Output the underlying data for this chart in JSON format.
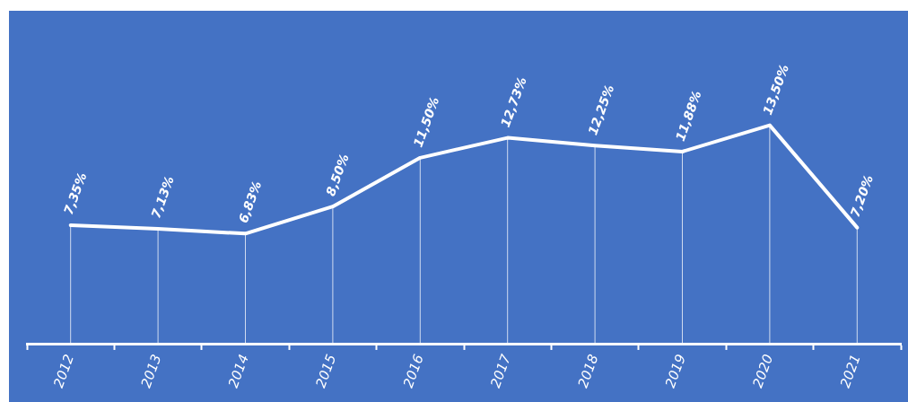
{
  "chart_data": {
    "type": "line",
    "categories": [
      "2012",
      "2013",
      "2014",
      "2015",
      "2016",
      "2017",
      "2018",
      "2019",
      "2020",
      "2021"
    ],
    "series": [
      {
        "color": "#ffffff",
        "values": [
          7.35,
          7.13,
          6.83,
          8.5,
          11.5,
          12.73,
          12.25,
          11.88,
          13.5,
          7.2
        ],
        "value_labels": [
          "7,35%",
          "7,13%",
          "6,83%",
          "8,50%",
          "11,50%",
          "12,73%",
          "12,25%",
          "11,88%",
          "13,50%",
          "7,20%"
        ]
      }
    ],
    "tick_labels": "x",
    "grid": "x",
    "legend": false,
    "marker": "none",
    "line_style": "solid"
  }
}
